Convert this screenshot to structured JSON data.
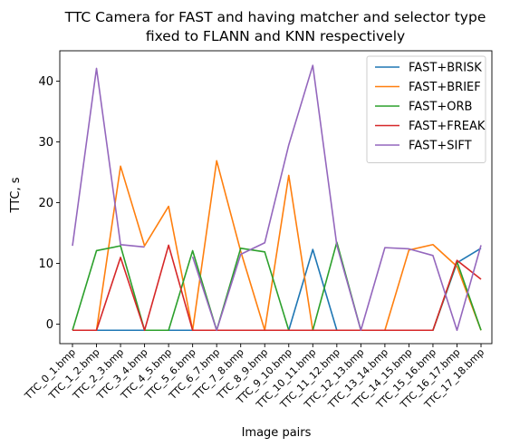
{
  "chart_data": {
    "type": "line",
    "title_lines": [
      "TTC Camera for FAST and having matcher and selector type",
      "fixed to FLANN and KNN respectively"
    ],
    "xlabel": "Image pairs",
    "ylabel": "TTC, s",
    "categories": [
      "TTC_0_1.bmp",
      "TTC_1_2.bmp",
      "TTC_2_3.bmp",
      "TTC_3_4.bmp",
      "TTC_4_5.bmp",
      "TTC_5_6.bmp",
      "TTC_6_7.bmp",
      "TTC_7_8.bmp",
      "TTC_8_9.bmp",
      "TTC_9_10.bmp",
      "TTC_10_11.bmp",
      "TTC_11_12.bmp",
      "TTC_12_13.bmp",
      "TTC_13_14.bmp",
      "TTC_14_15.bmp",
      "TTC_15_16.bmp",
      "TTC_16_17.bmp",
      "TTC_17_18.bmp"
    ],
    "ylim": [
      -3.2,
      45
    ],
    "yticks": [
      0,
      10,
      20,
      30,
      40
    ],
    "grid": false,
    "legend_position": "top-right",
    "series": [
      {
        "name": "FAST+BRISK",
        "color": "#1f77b4",
        "values": [
          -1,
          -1,
          -1,
          -1,
          -1,
          -1,
          -1,
          -1,
          -1,
          -1,
          12.3,
          -1,
          -1,
          -1,
          -1,
          -1,
          10.1,
          12.5
        ]
      },
      {
        "name": "FAST+BRIEF",
        "color": "#ff7f0e",
        "values": [
          -1,
          -1,
          26,
          12.9,
          19.4,
          -1,
          26.9,
          12.0,
          -1,
          24.5,
          -1,
          -1,
          -1,
          -1,
          12.2,
          13.1,
          9.5,
          -1
        ]
      },
      {
        "name": "FAST+ORB",
        "color": "#2ca02c",
        "values": [
          -1,
          12.1,
          12.9,
          -1,
          -1,
          12.1,
          -1,
          12.5,
          11.9,
          -1,
          -1,
          13.5,
          -1,
          -1,
          -1,
          -1,
          10.3,
          -1
        ]
      },
      {
        "name": "FAST+FREAK",
        "color": "#d62728",
        "values": [
          -1,
          -1,
          11,
          -1,
          13,
          -1,
          -1,
          -1,
          -1,
          -1,
          -1,
          -1,
          -1,
          -1,
          -1,
          -1,
          10.5,
          7.4
        ]
      },
      {
        "name": "FAST+SIFT",
        "color": "#9467bd",
        "values": [
          12.9,
          42.1,
          13.1,
          12.7,
          null,
          11.1,
          -1,
          11.5,
          13.4,
          29.5,
          42.6,
          13.0,
          -1,
          12.6,
          12.4,
          11.3,
          -1,
          13.0
        ]
      }
    ]
  }
}
